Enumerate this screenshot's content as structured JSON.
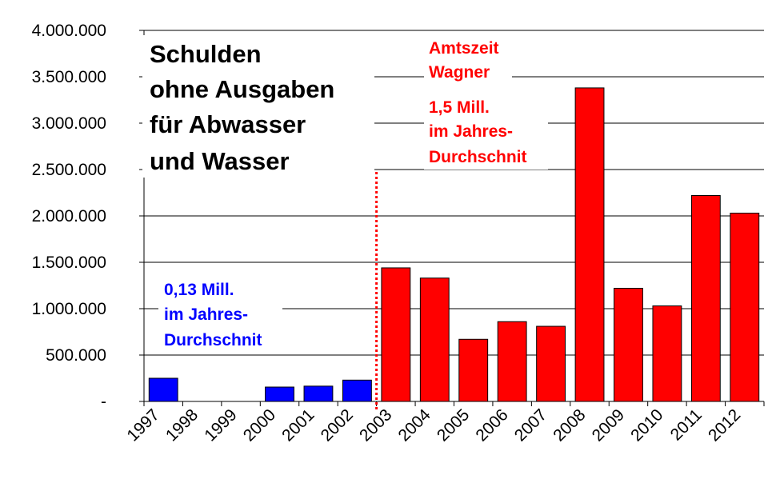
{
  "chart_data": {
    "type": "bar",
    "title_lines": [
      "Schulden",
      "ohne Ausgaben",
      "für Abwasser",
      "und Wasser"
    ],
    "categories": [
      "1997",
      "1998",
      "1999",
      "2000",
      "2001",
      "2002",
      "2003",
      "2004",
      "2005",
      "2006",
      "2007",
      "2008",
      "2009",
      "2010",
      "2011",
      "2012"
    ],
    "values": [
      250000,
      0,
      0,
      155000,
      165000,
      230000,
      1440000,
      1330000,
      670000,
      860000,
      810000,
      3380000,
      1220000,
      1030000,
      2220000,
      2030000
    ],
    "bar_colors": [
      "#0000ff",
      "#0000ff",
      "#0000ff",
      "#0000ff",
      "#0000ff",
      "#0000ff",
      "#ff0000",
      "#ff0000",
      "#ff0000",
      "#ff0000",
      "#ff0000",
      "#ff0000",
      "#ff0000",
      "#ff0000",
      "#ff0000",
      "#ff0000"
    ],
    "ylim": [
      0,
      4000000
    ],
    "yticks": [
      0,
      500000,
      1000000,
      1500000,
      2000000,
      2500000,
      3000000,
      3500000,
      4000000
    ],
    "ytick_labels": [
      "-",
      "500.000",
      "1.000.000",
      "1.500.000",
      "2.000.000",
      "2.500.000",
      "3.000.000",
      "3.500.000",
      "4.000.000"
    ],
    "grid": true,
    "divider_after_category": "2002",
    "divider_color": "#ff0000",
    "annotations": {
      "red_lines": [
        "Amtszeit",
        "Wagner",
        "1,5 Mill.",
        "im Jahres-",
        "Durchschnit"
      ],
      "blue_lines": [
        "0,13 Mill.",
        "im Jahres-",
        "Durchschnit"
      ]
    }
  }
}
